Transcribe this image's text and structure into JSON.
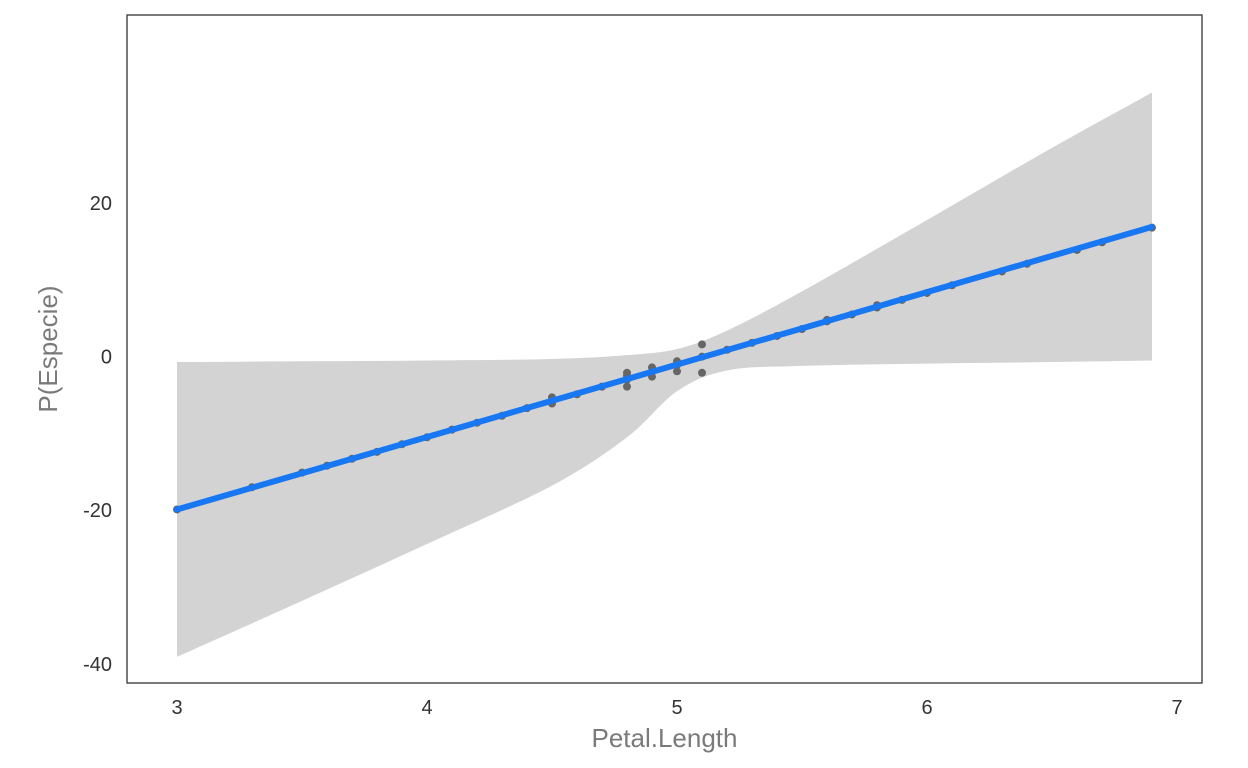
{
  "chart_data": {
    "type": "line",
    "title": "",
    "xlabel": "Petal.Length",
    "ylabel": "P(Especie)",
    "xlim": [
      2.8,
      7.1
    ],
    "ylim": [
      -42.5,
      44.5
    ],
    "x_ticks": [
      3,
      4,
      5,
      6,
      7
    ],
    "y_ticks": [
      -40,
      -20,
      0,
      20
    ],
    "x_tick_labels": [
      "3",
      "4",
      "5",
      "6",
      "7"
    ],
    "y_tick_labels": [
      "-40",
      "-20",
      "0",
      "20"
    ],
    "grid": false,
    "colors": {
      "line": "#1877f2",
      "ribbon": "#d3d3d3",
      "points": "#666666",
      "frame": "#333333"
    },
    "fit_line": {
      "x": [
        3.0,
        6.9
      ],
      "y": [
        -19.9,
        16.9
      ]
    },
    "confidence_band": {
      "x": [
        3.0,
        3.5,
        4.0,
        4.5,
        4.8,
        5.0,
        5.2,
        5.5,
        6.0,
        6.5,
        6.9
      ],
      "upper": [
        -0.7,
        -0.6,
        -0.5,
        -0.3,
        0.2,
        1.0,
        3.4,
        8.5,
        17.8,
        27.2,
        34.4
      ],
      "lower": [
        -39.1,
        -31.8,
        -24.4,
        -16.8,
        -10.5,
        -4.5,
        -1.8,
        -1.2,
        -0.9,
        -0.7,
        -0.5
      ]
    },
    "series": [
      {
        "type": "scatter",
        "x": [
          3.0,
          3.3,
          3.5,
          3.6,
          3.7,
          3.8,
          3.9,
          4.0,
          4.1,
          4.2,
          4.3,
          4.4,
          4.5,
          4.5,
          4.5,
          4.6,
          4.7,
          4.8,
          4.8,
          4.8,
          4.8,
          4.9,
          4.9,
          4.9,
          5.0,
          5.0,
          5.0,
          5.1,
          5.1,
          5.1,
          5.2,
          5.3,
          5.4,
          5.5,
          5.6,
          5.6,
          5.7,
          5.8,
          5.8,
          5.9,
          6.0,
          6.1,
          6.3,
          6.4,
          6.6,
          6.7,
          6.9
        ],
        "y": [
          -19.9,
          -17.0,
          -15.1,
          -14.2,
          -13.3,
          -12.4,
          -11.4,
          -10.5,
          -9.5,
          -8.6,
          -7.7,
          -6.7,
          -5.3,
          -5.8,
          -6.1,
          -4.9,
          -3.9,
          -2.1,
          -2.5,
          -3.0,
          -3.9,
          -1.4,
          -1.9,
          -2.6,
          -0.6,
          -1.1,
          -1.9,
          1.6,
          0.0,
          -2.1,
          0.9,
          1.8,
          2.7,
          3.6,
          4.6,
          4.8,
          5.5,
          6.4,
          6.7,
          7.4,
          8.3,
          9.3,
          11.1,
          12.1,
          13.9,
          14.9,
          16.8
        ]
      }
    ]
  }
}
